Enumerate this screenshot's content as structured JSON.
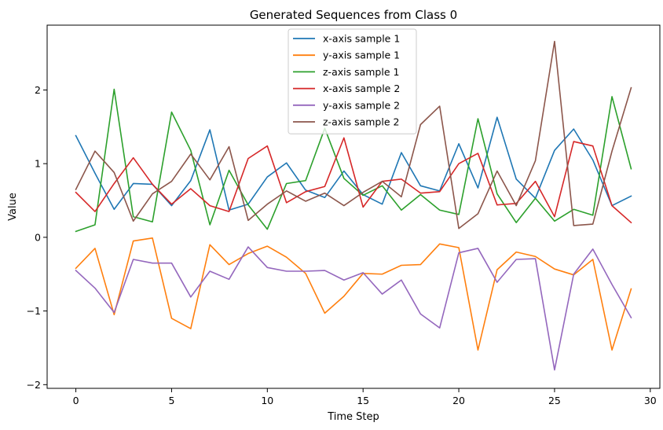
{
  "chart_data": {
    "type": "line",
    "title": "Generated Sequences from Class 0",
    "xlabel": "Time Step",
    "ylabel": "Value",
    "xlim": [
      -1.5,
      30.5
    ],
    "ylim": [
      -2.05,
      2.88
    ],
    "xticks": [
      0,
      5,
      10,
      15,
      20,
      25,
      30
    ],
    "yticks": [
      -2,
      -1,
      0,
      1,
      2
    ],
    "ytick_labels": [
      "−2",
      "−1",
      "0",
      "1",
      "2"
    ],
    "grid": false,
    "legend_position": "top-center",
    "x": [
      0,
      1,
      2,
      3,
      4,
      5,
      6,
      7,
      8,
      9,
      10,
      11,
      12,
      13,
      14,
      15,
      16,
      17,
      18,
      19,
      20,
      21,
      22,
      23,
      24,
      25,
      26,
      27,
      28,
      29
    ],
    "series": [
      {
        "name": "x-axis sample 1",
        "color": "#1f77b4",
        "values": [
          1.38,
          0.87,
          0.38,
          0.73,
          0.72,
          0.43,
          0.77,
          1.46,
          0.37,
          0.45,
          0.82,
          1.01,
          0.64,
          0.54,
          0.9,
          0.58,
          0.45,
          1.15,
          0.7,
          0.63,
          1.27,
          0.67,
          1.63,
          0.79,
          0.53,
          1.18,
          1.47,
          1.05,
          0.43,
          0.56
        ]
      },
      {
        "name": "y-axis sample 1",
        "color": "#ff7f0e",
        "values": [
          -0.42,
          -0.15,
          -1.05,
          -0.05,
          -0.01,
          -1.1,
          -1.24,
          -0.1,
          -0.37,
          -0.22,
          -0.12,
          -0.27,
          -0.49,
          -1.03,
          -0.8,
          -0.49,
          -0.5,
          -0.38,
          -0.37,
          -0.09,
          -0.14,
          -1.53,
          -0.44,
          -0.2,
          -0.26,
          -0.43,
          -0.51,
          -0.3,
          -1.53,
          -0.7
        ]
      },
      {
        "name": "z-axis sample 1",
        "color": "#2ca02c",
        "values": [
          0.08,
          0.17,
          2.01,
          0.28,
          0.21,
          1.7,
          1.18,
          0.17,
          0.91,
          0.44,
          0.11,
          0.73,
          0.77,
          1.48,
          0.8,
          0.57,
          0.7,
          0.37,
          0.58,
          0.37,
          0.31,
          1.61,
          0.59,
          0.2,
          0.53,
          0.22,
          0.38,
          0.3,
          1.91,
          0.93
        ]
      },
      {
        "name": "x-axis sample 2",
        "color": "#d62728",
        "values": [
          0.61,
          0.35,
          0.73,
          1.08,
          0.72,
          0.45,
          0.66,
          0.43,
          0.35,
          1.07,
          1.24,
          0.47,
          0.62,
          0.69,
          1.35,
          0.41,
          0.76,
          0.79,
          0.6,
          0.62,
          1.0,
          1.14,
          0.44,
          0.46,
          0.76,
          0.28,
          1.3,
          1.24,
          0.43,
          0.2
        ]
      },
      {
        "name": "y-axis sample 2",
        "color": "#9467bd",
        "values": [
          -0.45,
          -0.69,
          -1.02,
          -0.3,
          -0.35,
          -0.35,
          -0.81,
          -0.46,
          -0.57,
          -0.13,
          -0.41,
          -0.46,
          -0.46,
          -0.45,
          -0.58,
          -0.48,
          -0.77,
          -0.58,
          -1.04,
          -1.23,
          -0.21,
          -0.15,
          -0.61,
          -0.3,
          -0.29,
          -1.8,
          -0.5,
          -0.16,
          -0.64,
          -1.09
        ]
      },
      {
        "name": "z-axis sample 2",
        "color": "#8c564b",
        "values": [
          0.65,
          1.17,
          0.88,
          0.22,
          0.59,
          0.76,
          1.13,
          0.78,
          1.23,
          0.23,
          0.45,
          0.63,
          0.49,
          0.6,
          0.43,
          0.61,
          0.76,
          0.55,
          1.53,
          1.78,
          0.12,
          0.32,
          0.9,
          0.43,
          1.04,
          2.66,
          0.16,
          0.18,
          1.17,
          2.03
        ]
      }
    ]
  }
}
